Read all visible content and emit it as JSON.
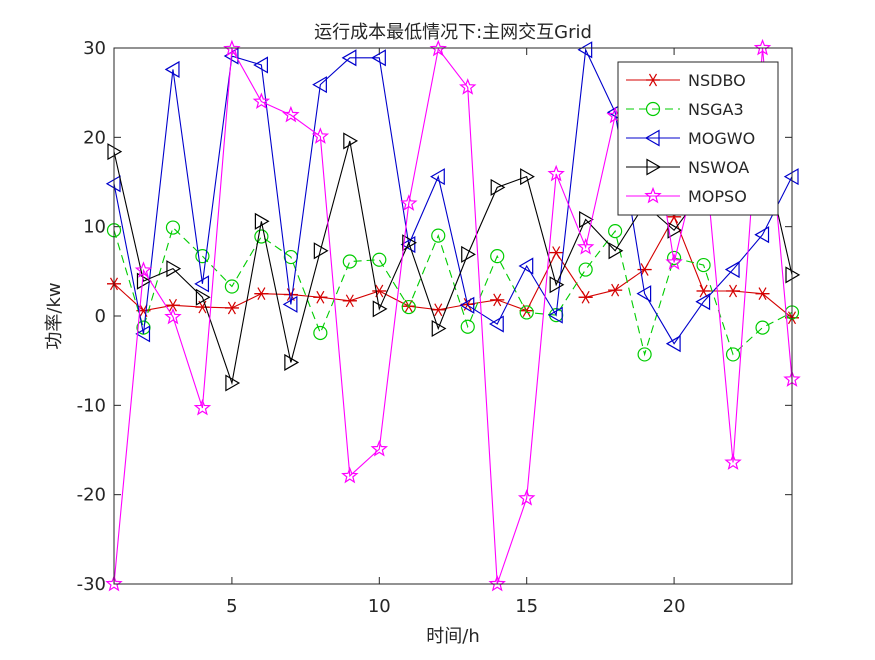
{
  "chart_data": {
    "type": "line",
    "title": "运行成本最低情况下:主网交互Grid",
    "xlabel": "时间/h",
    "ylabel": "功率/kw",
    "xlim": [
      1,
      24
    ],
    "ylim": [
      -30,
      30
    ],
    "xticks": [
      5,
      10,
      15,
      20
    ],
    "yticks": [
      -30,
      -20,
      -10,
      0,
      10,
      20,
      30
    ],
    "grid": false,
    "legend_position": "top-right",
    "x": [
      1,
      2,
      3,
      4,
      5,
      6,
      7,
      8,
      9,
      10,
      11,
      12,
      13,
      14,
      15,
      16,
      17,
      18,
      19,
      20,
      21,
      22,
      23,
      24
    ],
    "series": [
      {
        "name": "NSDBO",
        "color": "#d40000",
        "line_style": "solid",
        "marker": "asterisk",
        "values": [
          3.6,
          0.6,
          1.2,
          1.0,
          0.9,
          2.5,
          2.4,
          2.1,
          1.7,
          2.8,
          1.1,
          0.7,
          1.3,
          1.8,
          0.6,
          7.1,
          2.1,
          2.9,
          5.2,
          11.1,
          2.8,
          2.8,
          2.5,
          -0.2
        ]
      },
      {
        "name": "NSGA3",
        "color": "#00cc00",
        "line_style": "dashed",
        "marker": "circle",
        "values": [
          9.6,
          -1.3,
          9.9,
          6.7,
          3.3,
          8.9,
          6.6,
          -1.9,
          6.1,
          6.3,
          1.0,
          9.0,
          -1.2,
          6.7,
          0.4,
          0.1,
          5.2,
          9.5,
          -4.3,
          6.5,
          5.7,
          -4.3,
          -1.3,
          0.4
        ]
      },
      {
        "name": "MOGWO",
        "color": "#0000cc",
        "line_style": "solid",
        "marker": "triangle-left",
        "values": [
          14.8,
          -2.0,
          27.6,
          3.6,
          29.1,
          28.1,
          1.3,
          25.9,
          28.9,
          28.9,
          8.0,
          15.6,
          1.2,
          -0.9,
          5.6,
          0.1,
          29.8,
          22.8,
          2.5,
          -3.1,
          1.6,
          5.2,
          9.1,
          15.6
        ]
      },
      {
        "name": "NSWOA",
        "color": "#000000",
        "line_style": "solid",
        "marker": "triangle-right",
        "values": [
          18.4,
          3.9,
          5.3,
          2.1,
          -7.5,
          10.6,
          -5.2,
          7.3,
          19.6,
          0.8,
          8.2,
          -1.4,
          6.9,
          14.4,
          15.6,
          3.5,
          10.8,
          7.3,
          12.5,
          9.6,
          14.0,
          16.5,
          19.0,
          4.6
        ]
      },
      {
        "name": "MOPSO",
        "color": "#ff00ff",
        "line_style": "solid",
        "marker": "pentagram",
        "values": [
          -30.0,
          5.1,
          -0.1,
          -10.3,
          29.9,
          24.0,
          22.5,
          20.1,
          -17.9,
          -14.9,
          12.6,
          29.9,
          25.6,
          -30.0,
          -20.4,
          15.9,
          7.7,
          22.4,
          27.1,
          6.0,
          19.6,
          -16.4,
          30.0,
          -7.1
        ]
      }
    ]
  }
}
